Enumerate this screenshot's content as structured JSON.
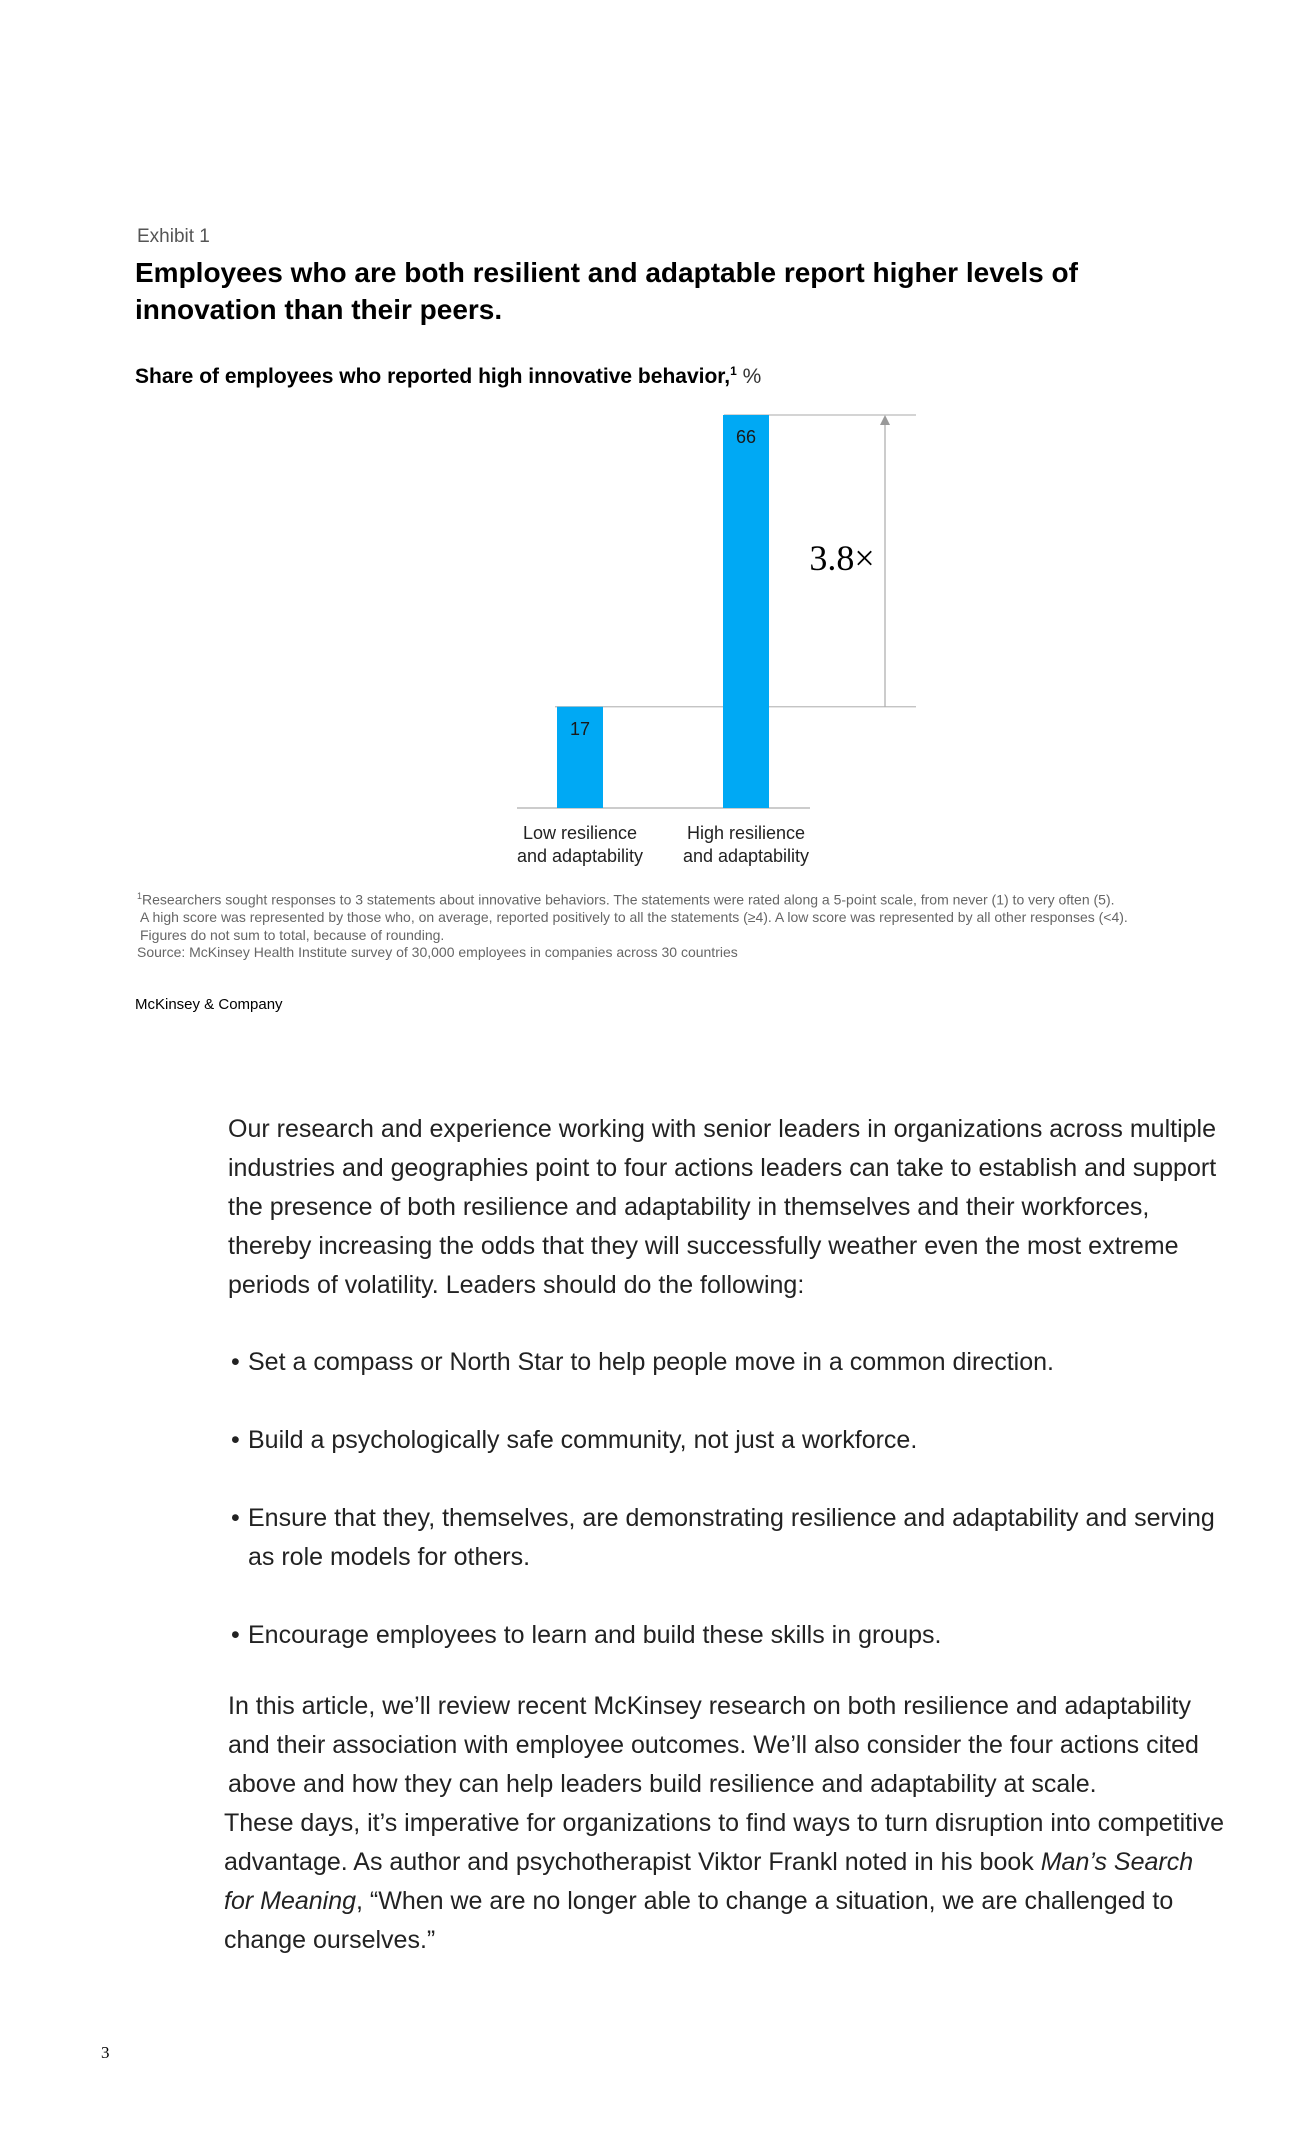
{
  "exhibit": {
    "label": "Exhibit 1",
    "title": "Employees who are both resilient and adaptable report higher levels of innovation than their peers.",
    "subtitle": "Share of employees who reported high innovative behavior,",
    "subtitle_sup": "1",
    "subtitle_unit": " %"
  },
  "chart_data": {
    "type": "bar",
    "categories": [
      "Low resilience and adaptability",
      "High resilience and adaptability"
    ],
    "category_lines": [
      [
        "Low resilience",
        "and adaptability"
      ],
      [
        "High resilience",
        "and adaptability"
      ]
    ],
    "values": [
      17,
      66
    ],
    "value_labels": [
      "17",
      "66"
    ],
    "annotation": "3.8×",
    "unit": "%",
    "bar_color": "#00A9F4",
    "ylim": [
      0,
      66
    ],
    "grid": false
  },
  "footnotes": {
    "sup": "1",
    "line1": "Researchers sought responses to 3 statements about innovative behaviors. The statements were rated along a 5-point scale, from never (1) to very often (5).",
    "line2": "A high score was represented by those who, on average, reported positively to all the statements (≥4). A low score was represented by all other responses (<4).",
    "line3": "Figures do not sum to total, because of rounding.",
    "source": "Source: McKinsey Health Institute survey of 30,000 employees in companies across 30 countries"
  },
  "company": "McKinsey & Company",
  "body": {
    "intro": "Our research and experience working with senior leaders in organizations across multiple industries and geographies point to four actions leaders can take to establish and support the presence of both resilience and adaptability in themselves and their workforces, thereby increasing the odds that they will successfully weather even the most extreme periods of volatility. Leaders should do the following:",
    "bullet_char": "•",
    "bullets": [
      "Set a compass or North Star to help people move in a common direction.",
      "Build a psychologically safe community, not just a workforce.",
      "Ensure that they, themselves, are demonstrating resilience and adaptability and serving as role models for others.",
      "Encourage employees to learn and build these skills in groups."
    ],
    "outro1": "In this article, we’ll review recent McKinsey research on both resilience and adaptability and their association with employee outcomes. We’ll also consider the four actions cited above and how they can help leaders build resilience and adaptability at scale.",
    "outro2": "These days, it’s imperative for organizations to find ways to turn disruption into competitive advantage. As author and psychotherapist Viktor Frankl noted in his book",
    "book_title": "Man’s Search for Meaning",
    "outro3": ", “When we are no longer able to change a situation, we are challenged to change ourselves.”"
  },
  "page_number": "3"
}
